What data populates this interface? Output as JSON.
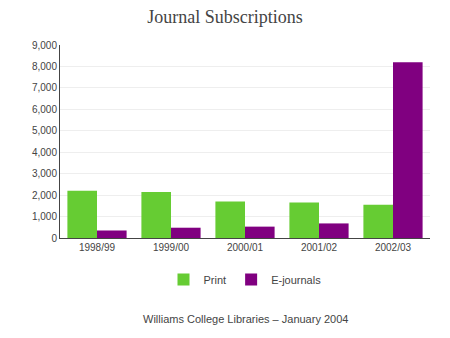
{
  "chart_data": {
    "type": "bar",
    "title": "Journal Subscriptions",
    "subtitle": "Williams College Libraries – January 2004",
    "categories": [
      "1998/99",
      "1999/00",
      "2000/01",
      "2001/02",
      "2002/03"
    ],
    "series": [
      {
        "name": "Print",
        "color": "#66cc33",
        "values": [
          2200,
          2150,
          1700,
          1650,
          1550
        ]
      },
      {
        "name": "E-journals",
        "color": "#800080",
        "values": [
          350,
          480,
          530,
          680,
          8200
        ]
      }
    ],
    "ylim": [
      0,
      9000
    ],
    "yticks": [
      0,
      {
        "value": 1000,
        "label": "1,000"
      },
      {
        "value": 2000,
        "label": "2,000"
      },
      {
        "value": 3000,
        "label": "3,000"
      },
      {
        "value": 4000,
        "label": "4,000"
      },
      {
        "value": 5000,
        "label": "5,000"
      },
      {
        "value": 6000,
        "label": "6,000"
      },
      {
        "value": 7000,
        "label": "7,000"
      },
      {
        "value": 8000,
        "label": "8,000"
      },
      {
        "value": 9000,
        "label": "9,000"
      }
    ],
    "grid": true,
    "legend": "bottom"
  }
}
